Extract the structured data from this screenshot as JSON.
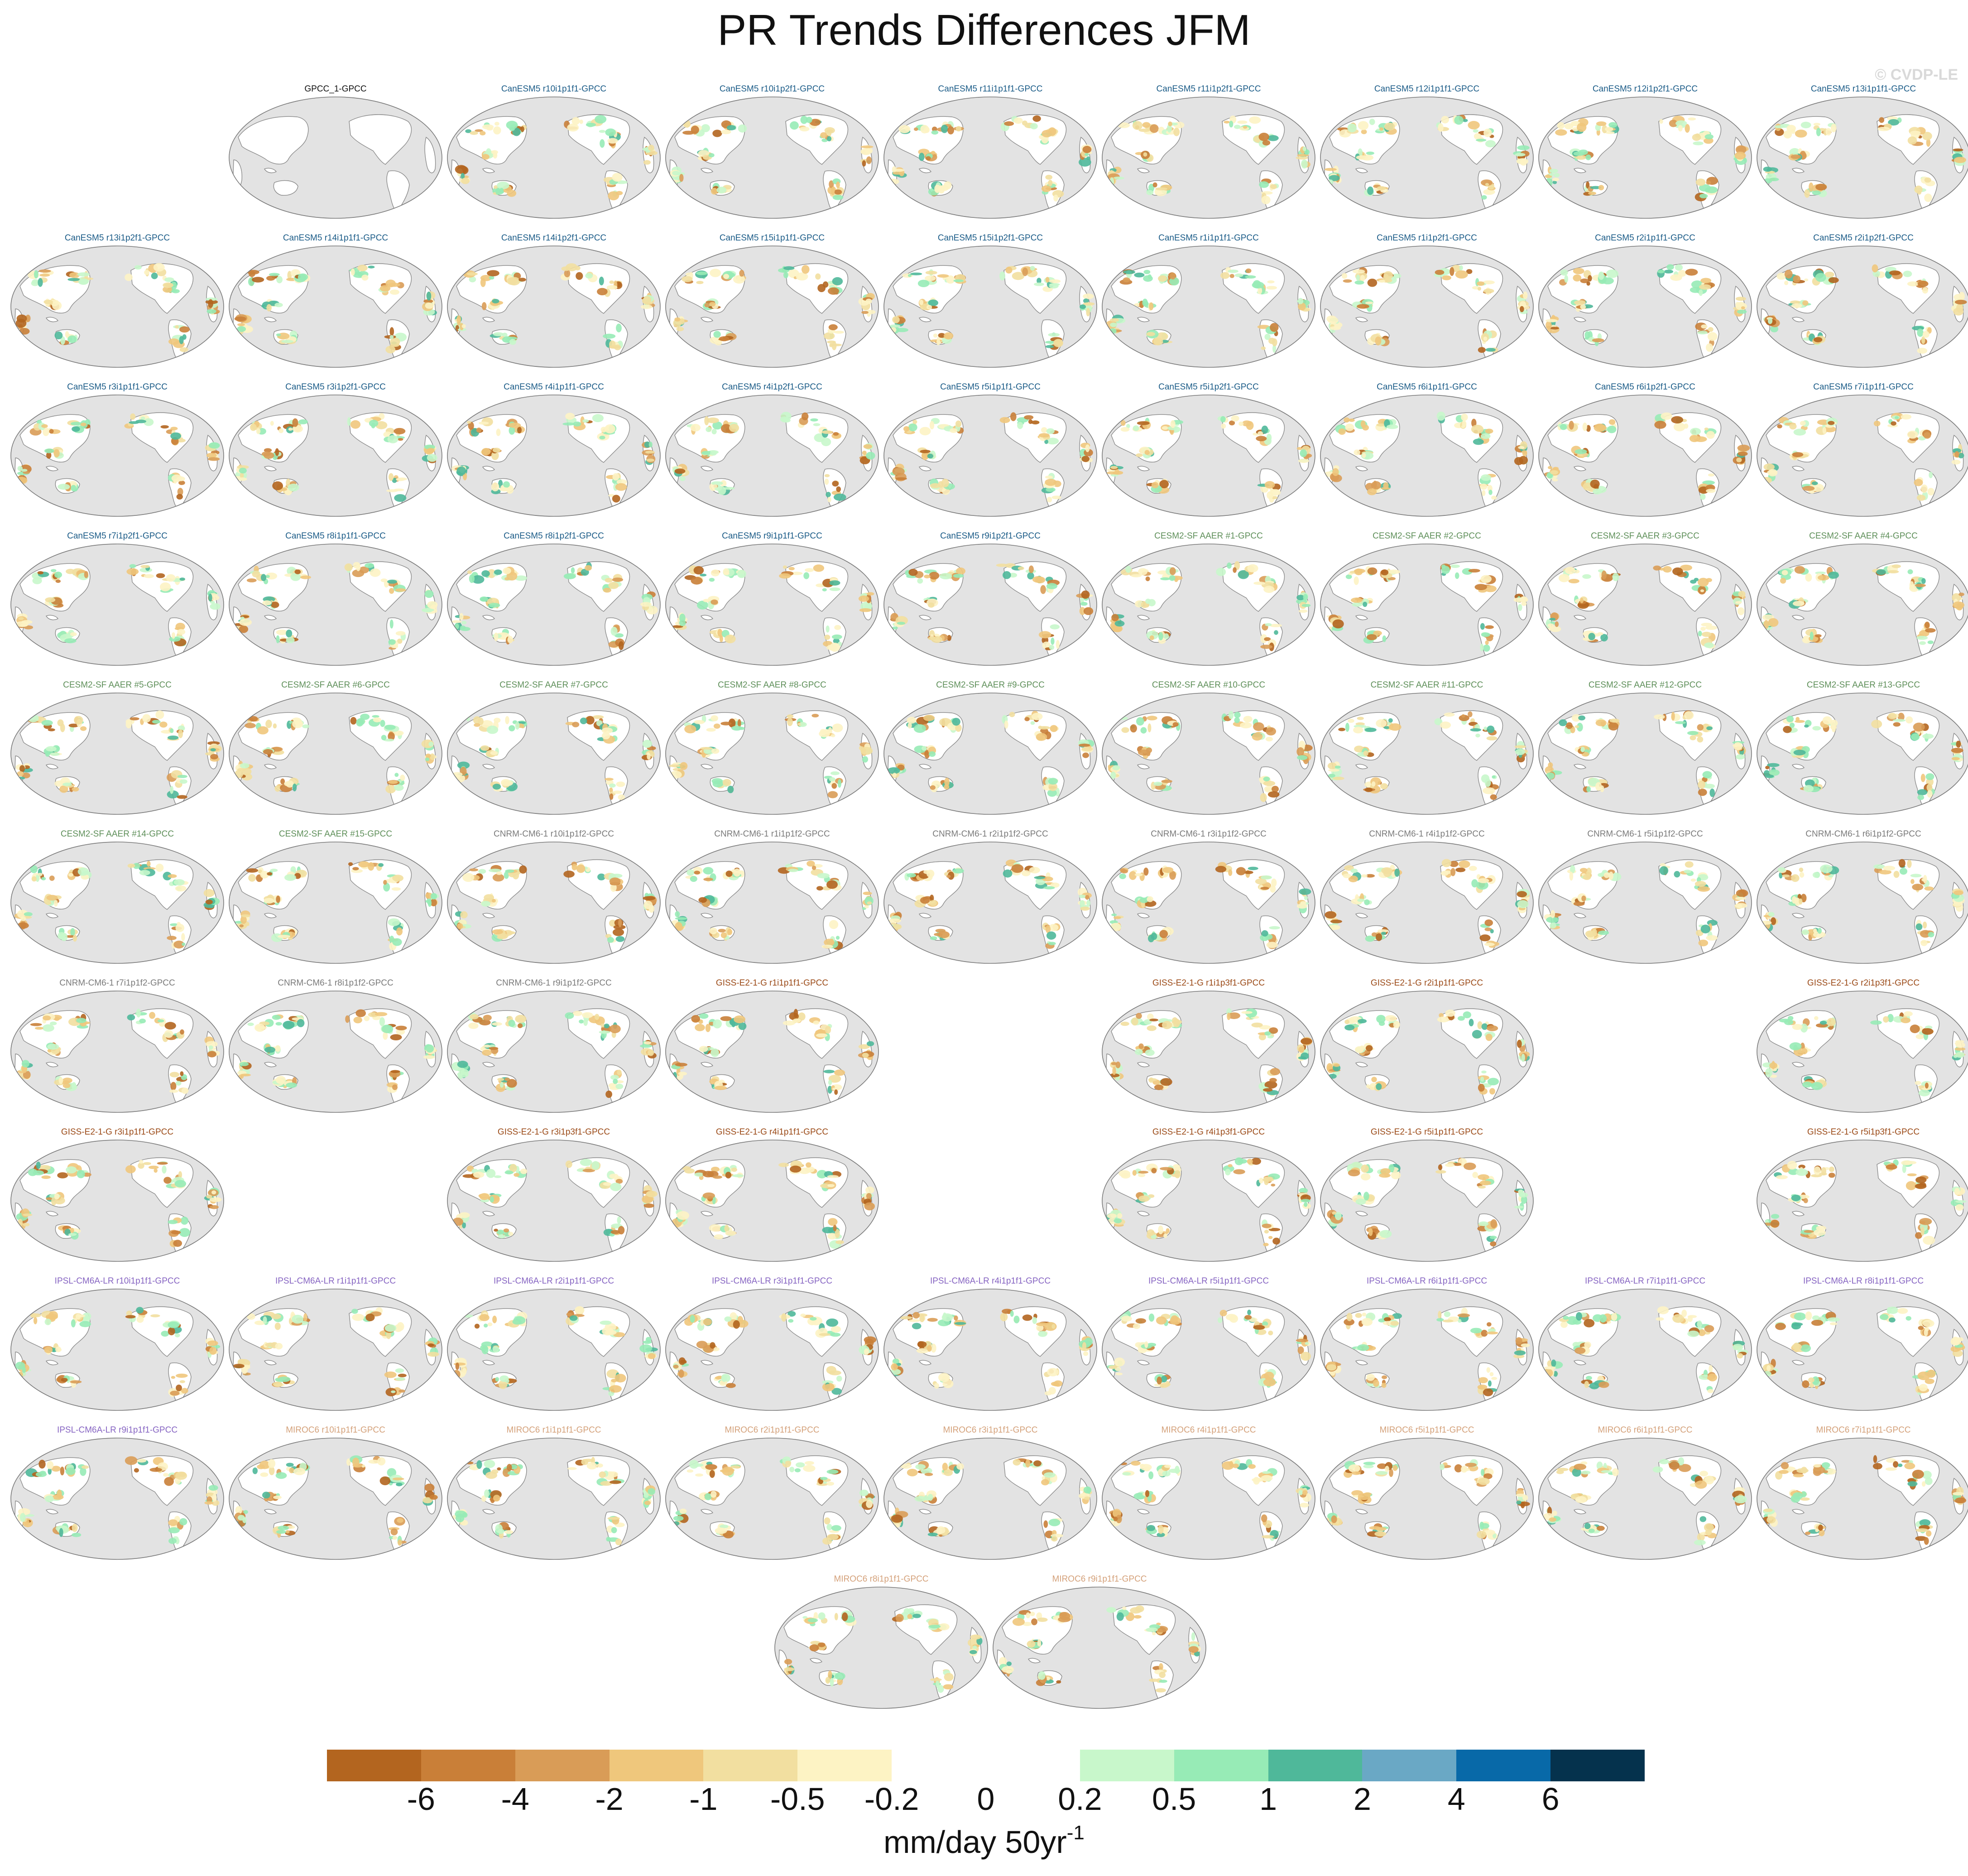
{
  "title": "PR Trends Differences JFM",
  "copyright": "© CVDP-LE",
  "units": {
    "base": "mm/day 50yr",
    "exponent": "-1"
  },
  "colorbar": {
    "colors": [
      "#b3651f",
      "#c97f38",
      "#d99c57",
      "#efc77c",
      "#f2dfa0",
      "#fdf3c4",
      "#ffffff",
      "#ffffff",
      "#c8f7cb",
      "#97ebb6",
      "#4fb89a",
      "#6aa8c5",
      "#0869a8",
      "#05324d"
    ],
    "ticks": [
      "-6",
      "-4",
      "-2",
      "-1",
      "-0.5",
      "-0.2",
      "0",
      "0.2",
      "0.5",
      "1",
      "2",
      "4",
      "6"
    ]
  },
  "model_colors": {
    "obs": "#111111",
    "CanESM5": "#1a5b87",
    "CESM2-SF AAER": "#5e8f59",
    "CNRM-CM6-1": "#7a7a7a",
    "GISS-E2-1-G": "#9b4a17",
    "IPSL-CM6A-LR": "#8664c2",
    "MIROC6": "#d4a17a"
  },
  "panels": [
    {
      "row": 0,
      "col": 1,
      "label": "GPCC_1-GPCC",
      "model": "obs",
      "style": "obs"
    },
    {
      "row": 0,
      "col": 2,
      "label": "CanESM5 r10i1p1f1-GPCC",
      "model": "CanESM5"
    },
    {
      "row": 0,
      "col": 3,
      "label": "CanESM5 r10i1p2f1-GPCC",
      "model": "CanESM5"
    },
    {
      "row": 0,
      "col": 4,
      "label": "CanESM5 r11i1p1f1-GPCC",
      "model": "CanESM5"
    },
    {
      "row": 0,
      "col": 5,
      "label": "CanESM5 r11i1p2f1-GPCC",
      "model": "CanESM5"
    },
    {
      "row": 0,
      "col": 6,
      "label": "CanESM5 r12i1p1f1-GPCC",
      "model": "CanESM5"
    },
    {
      "row": 0,
      "col": 7,
      "label": "CanESM5 r12i1p2f1-GPCC",
      "model": "CanESM5"
    },
    {
      "row": 0,
      "col": 8,
      "label": "CanESM5 r13i1p1f1-GPCC",
      "model": "CanESM5"
    },
    {
      "row": 1,
      "col": 0,
      "label": "CanESM5 r13i1p2f1-GPCC",
      "model": "CanESM5"
    },
    {
      "row": 1,
      "col": 1,
      "label": "CanESM5 r14i1p1f1-GPCC",
      "model": "CanESM5"
    },
    {
      "row": 1,
      "col": 2,
      "label": "CanESM5 r14i1p2f1-GPCC",
      "model": "CanESM5"
    },
    {
      "row": 1,
      "col": 3,
      "label": "CanESM5 r15i1p1f1-GPCC",
      "model": "CanESM5"
    },
    {
      "row": 1,
      "col": 4,
      "label": "CanESM5 r15i1p2f1-GPCC",
      "model": "CanESM5"
    },
    {
      "row": 1,
      "col": 5,
      "label": "CanESM5 r1i1p1f1-GPCC",
      "model": "CanESM5"
    },
    {
      "row": 1,
      "col": 6,
      "label": "CanESM5 r1i1p2f1-GPCC",
      "model": "CanESM5"
    },
    {
      "row": 1,
      "col": 7,
      "label": "CanESM5 r2i1p1f1-GPCC",
      "model": "CanESM5"
    },
    {
      "row": 1,
      "col": 8,
      "label": "CanESM5 r2i1p2f1-GPCC",
      "model": "CanESM5"
    },
    {
      "row": 2,
      "col": 0,
      "label": "CanESM5 r3i1p1f1-GPCC",
      "model": "CanESM5"
    },
    {
      "row": 2,
      "col": 1,
      "label": "CanESM5 r3i1p2f1-GPCC",
      "model": "CanESM5"
    },
    {
      "row": 2,
      "col": 2,
      "label": "CanESM5 r4i1p1f1-GPCC",
      "model": "CanESM5"
    },
    {
      "row": 2,
      "col": 3,
      "label": "CanESM5 r4i1p2f1-GPCC",
      "model": "CanESM5"
    },
    {
      "row": 2,
      "col": 4,
      "label": "CanESM5 r5i1p1f1-GPCC",
      "model": "CanESM5"
    },
    {
      "row": 2,
      "col": 5,
      "label": "CanESM5 r5i1p2f1-GPCC",
      "model": "CanESM5"
    },
    {
      "row": 2,
      "col": 6,
      "label": "CanESM5 r6i1p1f1-GPCC",
      "model": "CanESM5"
    },
    {
      "row": 2,
      "col": 7,
      "label": "CanESM5 r6i1p2f1-GPCC",
      "model": "CanESM5"
    },
    {
      "row": 2,
      "col": 8,
      "label": "CanESM5 r7i1p1f1-GPCC",
      "model": "CanESM5"
    },
    {
      "row": 3,
      "col": 0,
      "label": "CanESM5 r7i1p2f1-GPCC",
      "model": "CanESM5"
    },
    {
      "row": 3,
      "col": 1,
      "label": "CanESM5 r8i1p1f1-GPCC",
      "model": "CanESM5"
    },
    {
      "row": 3,
      "col": 2,
      "label": "CanESM5 r8i1p2f1-GPCC",
      "model": "CanESM5"
    },
    {
      "row": 3,
      "col": 3,
      "label": "CanESM5 r9i1p1f1-GPCC",
      "model": "CanESM5"
    },
    {
      "row": 3,
      "col": 4,
      "label": "CanESM5 r9i1p2f1-GPCC",
      "model": "CanESM5"
    },
    {
      "row": 3,
      "col": 5,
      "label": "CESM2-SF AAER #1-GPCC",
      "model": "CESM2-SF AAER"
    },
    {
      "row": 3,
      "col": 6,
      "label": "CESM2-SF AAER #2-GPCC",
      "model": "CESM2-SF AAER"
    },
    {
      "row": 3,
      "col": 7,
      "label": "CESM2-SF AAER #3-GPCC",
      "model": "CESM2-SF AAER"
    },
    {
      "row": 3,
      "col": 8,
      "label": "CESM2-SF AAER #4-GPCC",
      "model": "CESM2-SF AAER"
    },
    {
      "row": 4,
      "col": 0,
      "label": "CESM2-SF AAER #5-GPCC",
      "model": "CESM2-SF AAER"
    },
    {
      "row": 4,
      "col": 1,
      "label": "CESM2-SF AAER #6-GPCC",
      "model": "CESM2-SF AAER"
    },
    {
      "row": 4,
      "col": 2,
      "label": "CESM2-SF AAER #7-GPCC",
      "model": "CESM2-SF AAER"
    },
    {
      "row": 4,
      "col": 3,
      "label": "CESM2-SF AAER #8-GPCC",
      "model": "CESM2-SF AAER"
    },
    {
      "row": 4,
      "col": 4,
      "label": "CESM2-SF AAER #9-GPCC",
      "model": "CESM2-SF AAER"
    },
    {
      "row": 4,
      "col": 5,
      "label": "CESM2-SF AAER #10-GPCC",
      "model": "CESM2-SF AAER"
    },
    {
      "row": 4,
      "col": 6,
      "label": "CESM2-SF AAER #11-GPCC",
      "model": "CESM2-SF AAER"
    },
    {
      "row": 4,
      "col": 7,
      "label": "CESM2-SF AAER #12-GPCC",
      "model": "CESM2-SF AAER"
    },
    {
      "row": 4,
      "col": 8,
      "label": "CESM2-SF AAER #13-GPCC",
      "model": "CESM2-SF AAER"
    },
    {
      "row": 5,
      "col": 0,
      "label": "CESM2-SF AAER #14-GPCC",
      "model": "CESM2-SF AAER"
    },
    {
      "row": 5,
      "col": 1,
      "label": "CESM2-SF AAER #15-GPCC",
      "model": "CESM2-SF AAER"
    },
    {
      "row": 5,
      "col": 2,
      "label": "CNRM-CM6-1 r10i1p1f2-GPCC",
      "model": "CNRM-CM6-1"
    },
    {
      "row": 5,
      "col": 3,
      "label": "CNRM-CM6-1 r1i1p1f2-GPCC",
      "model": "CNRM-CM6-1"
    },
    {
      "row": 5,
      "col": 4,
      "label": "CNRM-CM6-1 r2i1p1f2-GPCC",
      "model": "CNRM-CM6-1"
    },
    {
      "row": 5,
      "col": 5,
      "label": "CNRM-CM6-1 r3i1p1f2-GPCC",
      "model": "CNRM-CM6-1"
    },
    {
      "row": 5,
      "col": 6,
      "label": "CNRM-CM6-1 r4i1p1f2-GPCC",
      "model": "CNRM-CM6-1"
    },
    {
      "row": 5,
      "col": 7,
      "label": "CNRM-CM6-1 r5i1p1f2-GPCC",
      "model": "CNRM-CM6-1"
    },
    {
      "row": 5,
      "col": 8,
      "label": "CNRM-CM6-1 r6i1p1f2-GPCC",
      "model": "CNRM-CM6-1"
    },
    {
      "row": 6,
      "col": 0,
      "label": "CNRM-CM6-1 r7i1p1f2-GPCC",
      "model": "CNRM-CM6-1"
    },
    {
      "row": 6,
      "col": 1,
      "label": "CNRM-CM6-1 r8i1p1f2-GPCC",
      "model": "CNRM-CM6-1"
    },
    {
      "row": 6,
      "col": 2,
      "label": "CNRM-CM6-1 r9i1p1f2-GPCC",
      "model": "CNRM-CM6-1"
    },
    {
      "row": 6,
      "col": 3,
      "label": "GISS-E2-1-G r1i1p1f1-GPCC",
      "model": "GISS-E2-1-G"
    },
    {
      "row": 6,
      "col": 5,
      "label": "GISS-E2-1-G r1i1p3f1-GPCC",
      "model": "GISS-E2-1-G"
    },
    {
      "row": 6,
      "col": 6,
      "label": "GISS-E2-1-G r2i1p1f1-GPCC",
      "model": "GISS-E2-1-G"
    },
    {
      "row": 6,
      "col": 8,
      "label": "GISS-E2-1-G r2i1p3f1-GPCC",
      "model": "GISS-E2-1-G"
    },
    {
      "row": 7,
      "col": 0,
      "label": "GISS-E2-1-G r3i1p1f1-GPCC",
      "model": "GISS-E2-1-G"
    },
    {
      "row": 7,
      "col": 2,
      "label": "GISS-E2-1-G r3i1p3f1-GPCC",
      "model": "GISS-E2-1-G"
    },
    {
      "row": 7,
      "col": 3,
      "label": "GISS-E2-1-G r4i1p1f1-GPCC",
      "model": "GISS-E2-1-G"
    },
    {
      "row": 7,
      "col": 5,
      "label": "GISS-E2-1-G r4i1p3f1-GPCC",
      "model": "GISS-E2-1-G"
    },
    {
      "row": 7,
      "col": 6,
      "label": "GISS-E2-1-G r5i1p1f1-GPCC",
      "model": "GISS-E2-1-G"
    },
    {
      "row": 7,
      "col": 8,
      "label": "GISS-E2-1-G r5i1p3f1-GPCC",
      "model": "GISS-E2-1-G"
    },
    {
      "row": 8,
      "col": 0,
      "label": "IPSL-CM6A-LR r10i1p1f1-GPCC",
      "model": "IPSL-CM6A-LR"
    },
    {
      "row": 8,
      "col": 1,
      "label": "IPSL-CM6A-LR r1i1p1f1-GPCC",
      "model": "IPSL-CM6A-LR"
    },
    {
      "row": 8,
      "col": 2,
      "label": "IPSL-CM6A-LR r2i1p1f1-GPCC",
      "model": "IPSL-CM6A-LR"
    },
    {
      "row": 8,
      "col": 3,
      "label": "IPSL-CM6A-LR r3i1p1f1-GPCC",
      "model": "IPSL-CM6A-LR"
    },
    {
      "row": 8,
      "col": 4,
      "label": "IPSL-CM6A-LR r4i1p1f1-GPCC",
      "model": "IPSL-CM6A-LR"
    },
    {
      "row": 8,
      "col": 5,
      "label": "IPSL-CM6A-LR r5i1p1f1-GPCC",
      "model": "IPSL-CM6A-LR"
    },
    {
      "row": 8,
      "col": 6,
      "label": "IPSL-CM6A-LR r6i1p1f1-GPCC",
      "model": "IPSL-CM6A-LR"
    },
    {
      "row": 8,
      "col": 7,
      "label": "IPSL-CM6A-LR r7i1p1f1-GPCC",
      "model": "IPSL-CM6A-LR"
    },
    {
      "row": 8,
      "col": 8,
      "label": "IPSL-CM6A-LR r8i1p1f1-GPCC",
      "model": "IPSL-CM6A-LR"
    },
    {
      "row": 9,
      "col": 0,
      "label": "IPSL-CM6A-LR r9i1p1f1-GPCC",
      "model": "IPSL-CM6A-LR"
    },
    {
      "row": 9,
      "col": 1,
      "label": "MIROC6 r10i1p1f1-GPCC",
      "model": "MIROC6"
    },
    {
      "row": 9,
      "col": 2,
      "label": "MIROC6 r1i1p1f1-GPCC",
      "model": "MIROC6"
    },
    {
      "row": 9,
      "col": 3,
      "label": "MIROC6 r2i1p1f1-GPCC",
      "model": "MIROC6"
    },
    {
      "row": 9,
      "col": 4,
      "label": "MIROC6 r3i1p1f1-GPCC",
      "model": "MIROC6"
    },
    {
      "row": 9,
      "col": 5,
      "label": "MIROC6 r4i1p1f1-GPCC",
      "model": "MIROC6"
    },
    {
      "row": 9,
      "col": 6,
      "label": "MIROC6 r5i1p1f1-GPCC",
      "model": "MIROC6"
    },
    {
      "row": 9,
      "col": 7,
      "label": "MIROC6 r6i1p1f1-GPCC",
      "model": "MIROC6"
    },
    {
      "row": 9,
      "col": 8,
      "label": "MIROC6 r7i1p1f1-GPCC",
      "model": "MIROC6"
    },
    {
      "row": 10,
      "col": "c1",
      "label": "MIROC6 r8i1p1f1-GPCC",
      "model": "MIROC6"
    },
    {
      "row": 10,
      "col": "c2",
      "label": "MIROC6 r9i1p1f1-GPCC",
      "model": "MIROC6"
    }
  ]
}
